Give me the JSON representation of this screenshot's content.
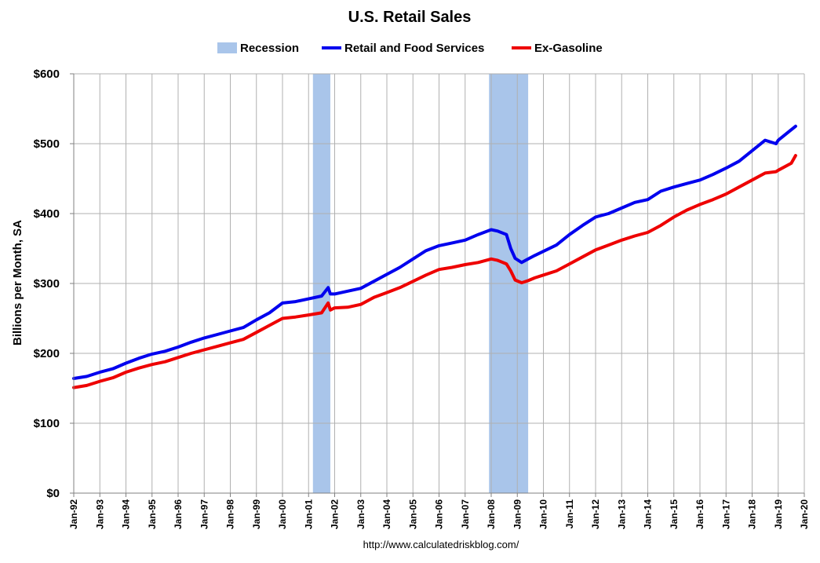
{
  "chart_data": {
    "type": "line",
    "title": "U.S. Retail Sales",
    "ylabel": "Billions per Month, SA",
    "xlabel": "",
    "ylim": [
      0,
      600
    ],
    "xlim": [
      "1992-01",
      "2020-01"
    ],
    "y_ticks": [
      "$0",
      "$100",
      "$200",
      "$300",
      "$400",
      "$500",
      "$600"
    ],
    "x_ticks": [
      "Jan-92",
      "Jan-93",
      "Jan-94",
      "Jan-95",
      "Jan-96",
      "Jan-97",
      "Jan-98",
      "Jan-99",
      "Jan-00",
      "Jan-01",
      "Jan-02",
      "Jan-03",
      "Jan-04",
      "Jan-05",
      "Jan-06",
      "Jan-07",
      "Jan-08",
      "Jan-09",
      "Jan-10",
      "Jan-11",
      "Jan-12",
      "Jan-13",
      "Jan-14",
      "Jan-15",
      "Jan-16",
      "Jan-17",
      "Jan-18",
      "Jan-19",
      "Jan-20"
    ],
    "grid": true,
    "legend_position": "top",
    "legend": [
      {
        "name": "Recession",
        "kind": "band",
        "color": "#a9c5ea"
      },
      {
        "name": "Retail and Food Services",
        "kind": "line",
        "color": "#0000ee"
      },
      {
        "name": "Ex-Gasoline",
        "kind": "line",
        "color": "#ee0000"
      }
    ],
    "recessions": [
      {
        "start": "2001-03",
        "end": "2001-11"
      },
      {
        "start": "2007-12",
        "end": "2009-06"
      }
    ],
    "series": [
      {
        "name": "Retail and Food Services",
        "color": "#0000ee",
        "points": [
          [
            "1992-01",
            164
          ],
          [
            "1992-07",
            167
          ],
          [
            "1993-01",
            173
          ],
          [
            "1993-07",
            178
          ],
          [
            "1994-01",
            186
          ],
          [
            "1994-07",
            193
          ],
          [
            "1995-01",
            199
          ],
          [
            "1995-07",
            203
          ],
          [
            "1996-01",
            209
          ],
          [
            "1996-07",
            216
          ],
          [
            "1997-01",
            222
          ],
          [
            "1997-07",
            227
          ],
          [
            "1998-01",
            232
          ],
          [
            "1998-07",
            237
          ],
          [
            "1999-01",
            248
          ],
          [
            "1999-07",
            258
          ],
          [
            "2000-01",
            272
          ],
          [
            "2000-07",
            274
          ],
          [
            "2001-01",
            278
          ],
          [
            "2001-07",
            282
          ],
          [
            "2001-10",
            294
          ],
          [
            "2001-11",
            285
          ],
          [
            "2002-01",
            285
          ],
          [
            "2002-07",
            289
          ],
          [
            "2003-01",
            293
          ],
          [
            "2003-07",
            303
          ],
          [
            "2004-01",
            313
          ],
          [
            "2004-07",
            323
          ],
          [
            "2005-01",
            335
          ],
          [
            "2005-07",
            347
          ],
          [
            "2006-01",
            354
          ],
          [
            "2006-07",
            358
          ],
          [
            "2007-01",
            362
          ],
          [
            "2007-07",
            370
          ],
          [
            "2008-01",
            377
          ],
          [
            "2008-04",
            375
          ],
          [
            "2008-08",
            370
          ],
          [
            "2008-10",
            350
          ],
          [
            "2008-12",
            336
          ],
          [
            "2009-03",
            330
          ],
          [
            "2009-06",
            335
          ],
          [
            "2009-09",
            340
          ],
          [
            "2010-01",
            346
          ],
          [
            "2010-07",
            355
          ],
          [
            "2011-01",
            370
          ],
          [
            "2011-07",
            383
          ],
          [
            "2012-01",
            395
          ],
          [
            "2012-07",
            400
          ],
          [
            "2013-01",
            408
          ],
          [
            "2013-07",
            416
          ],
          [
            "2014-01",
            420
          ],
          [
            "2014-07",
            432
          ],
          [
            "2015-01",
            438
          ],
          [
            "2015-07",
            443
          ],
          [
            "2016-01",
            448
          ],
          [
            "2016-07",
            456
          ],
          [
            "2017-01",
            465
          ],
          [
            "2017-07",
            475
          ],
          [
            "2018-01",
            490
          ],
          [
            "2018-07",
            505
          ],
          [
            "2018-12",
            500
          ],
          [
            "2019-01",
            505
          ],
          [
            "2019-07",
            520
          ],
          [
            "2019-09",
            525
          ]
        ]
      },
      {
        "name": "Ex-Gasoline",
        "color": "#ee0000",
        "points": [
          [
            "1992-01",
            151
          ],
          [
            "1992-07",
            154
          ],
          [
            "1993-01",
            160
          ],
          [
            "1993-07",
            165
          ],
          [
            "1994-01",
            173
          ],
          [
            "1994-07",
            179
          ],
          [
            "1995-01",
            184
          ],
          [
            "1995-07",
            188
          ],
          [
            "1996-01",
            194
          ],
          [
            "1996-07",
            200
          ],
          [
            "1997-01",
            205
          ],
          [
            "1997-07",
            210
          ],
          [
            "1998-01",
            215
          ],
          [
            "1998-07",
            220
          ],
          [
            "1999-01",
            230
          ],
          [
            "1999-07",
            240
          ],
          [
            "2000-01",
            250
          ],
          [
            "2000-07",
            252
          ],
          [
            "2001-01",
            255
          ],
          [
            "2001-07",
            258
          ],
          [
            "2001-10",
            272
          ],
          [
            "2001-11",
            262
          ],
          [
            "2002-01",
            265
          ],
          [
            "2002-07",
            266
          ],
          [
            "2003-01",
            270
          ],
          [
            "2003-07",
            280
          ],
          [
            "2004-01",
            287
          ],
          [
            "2004-07",
            294
          ],
          [
            "2005-01",
            303
          ],
          [
            "2005-07",
            312
          ],
          [
            "2006-01",
            320
          ],
          [
            "2006-07",
            323
          ],
          [
            "2007-01",
            327
          ],
          [
            "2007-07",
            330
          ],
          [
            "2008-01",
            335
          ],
          [
            "2008-04",
            333
          ],
          [
            "2008-08",
            328
          ],
          [
            "2008-10",
            318
          ],
          [
            "2008-12",
            305
          ],
          [
            "2009-03",
            301
          ],
          [
            "2009-06",
            304
          ],
          [
            "2009-09",
            308
          ],
          [
            "2010-01",
            312
          ],
          [
            "2010-07",
            318
          ],
          [
            "2011-01",
            328
          ],
          [
            "2011-07",
            338
          ],
          [
            "2012-01",
            348
          ],
          [
            "2012-07",
            355
          ],
          [
            "2013-01",
            362
          ],
          [
            "2013-07",
            368
          ],
          [
            "2014-01",
            373
          ],
          [
            "2014-07",
            383
          ],
          [
            "2015-01",
            395
          ],
          [
            "2015-07",
            405
          ],
          [
            "2016-01",
            413
          ],
          [
            "2016-07",
            420
          ],
          [
            "2017-01",
            428
          ],
          [
            "2017-07",
            438
          ],
          [
            "2018-01",
            448
          ],
          [
            "2018-07",
            458
          ],
          [
            "2018-12",
            460
          ],
          [
            "2019-01",
            462
          ],
          [
            "2019-07",
            472
          ],
          [
            "2019-09",
            483
          ]
        ]
      }
    ],
    "source_text": "http://www.calculatedriskblog.com/"
  }
}
